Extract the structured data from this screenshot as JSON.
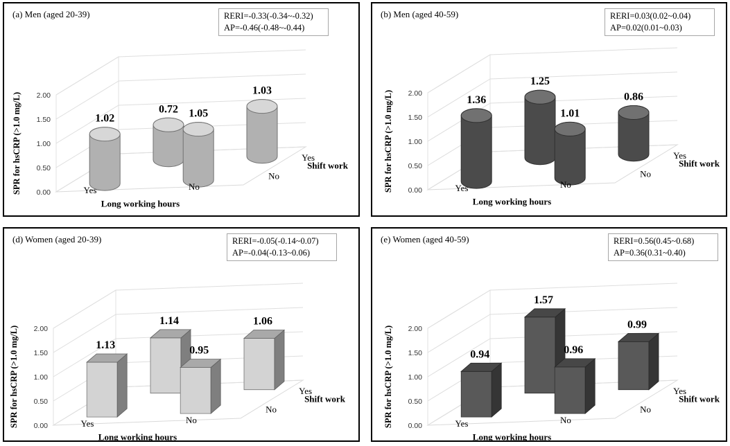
{
  "chart_data": [
    {
      "type": "bar",
      "shape": "cylinder",
      "title": "(a) Men (aged 20-39)",
      "rows": [
        "Yes",
        "No"
      ],
      "cols": [
        "Yes",
        "No"
      ],
      "values": [
        [
          1.02,
          0.72
        ],
        [
          1.05,
          1.03
        ]
      ],
      "value_labels": [
        "1.02",
        "0.72",
        "1.05",
        "1.03"
      ],
      "yticks": [
        "2.00",
        "1.50",
        "1.00",
        "0.50",
        "0.00"
      ],
      "ylim": [
        0,
        2
      ],
      "ylabel": "SPR for hsCRP (>1.0 mg/L)",
      "xlabel": "Long working hours",
      "zlabel": "Shift work",
      "stats": [
        "RERI=-0.33(-0.34~-0.32)",
        "AP=-0.46(-0.48~-0.44)"
      ],
      "color": "#d0d0d0"
    },
    {
      "type": "bar",
      "shape": "cylinder",
      "title": "(b) Men (aged 40-59)",
      "rows": [
        "Yes",
        "No"
      ],
      "cols": [
        "Yes",
        "No"
      ],
      "values": [
        [
          1.36,
          1.25
        ],
        [
          1.01,
          0.86
        ]
      ],
      "value_labels": [
        "1.36",
        "1.25",
        "1.01",
        "0.86"
      ],
      "yticks": [
        "2.00",
        "1.50",
        "1.00",
        "0.50",
        "0.00"
      ],
      "ylim": [
        0,
        2
      ],
      "ylabel": "SPR for hsCRP (>1.0 mg/L)",
      "xlabel": "Long working hours",
      "zlabel": "Shift work",
      "stats": [
        "RERI=0.03(0.02~0.04)",
        "AP=0.02(0.01~0.03)"
      ],
      "color": "#585858"
    },
    {
      "type": "bar",
      "shape": "box",
      "title": "(d) Women (aged 20-39)",
      "rows": [
        "Yes",
        "No"
      ],
      "cols": [
        "Yes",
        "No"
      ],
      "values": [
        [
          1.13,
          1.14
        ],
        [
          0.95,
          1.06
        ]
      ],
      "value_labels": [
        "1.13",
        "1.14",
        "0.95",
        "1.06"
      ],
      "yticks": [
        "2.00",
        "1.50",
        "1.00",
        "0.50",
        "0.00"
      ],
      "ylim": [
        0,
        2
      ],
      "ylabel": "SPR for hsCRP (>1.0 mg/L)",
      "xlabel": "Long working hours",
      "zlabel": "Shift work",
      "stats": [
        "RERI=-0.05(-0.14~0.07)",
        "AP=-0.04(-0.13~0.06)"
      ],
      "color": "#d3d3d3"
    },
    {
      "type": "bar",
      "shape": "box",
      "title": "(e) Women (aged 40-59)",
      "rows": [
        "Yes",
        "No"
      ],
      "cols": [
        "Yes",
        "No"
      ],
      "values": [
        [
          0.94,
          1.57
        ],
        [
          0.96,
          0.99
        ]
      ],
      "value_labels": [
        "0.94",
        "1.57",
        "0.96",
        "0.99"
      ],
      "yticks": [
        "2.00",
        "1.50",
        "1.00",
        "0.50",
        "0.00"
      ],
      "ylim": [
        0,
        2
      ],
      "ylabel": "SPR for hsCRP (>1.0 mg/L)",
      "xlabel": "Long working hours",
      "zlabel": "Shift work",
      "stats": [
        "RERI=0.56(0.45~0.68)",
        "AP=0.36(0.31~0.40)"
      ],
      "color": "#595959"
    }
  ]
}
